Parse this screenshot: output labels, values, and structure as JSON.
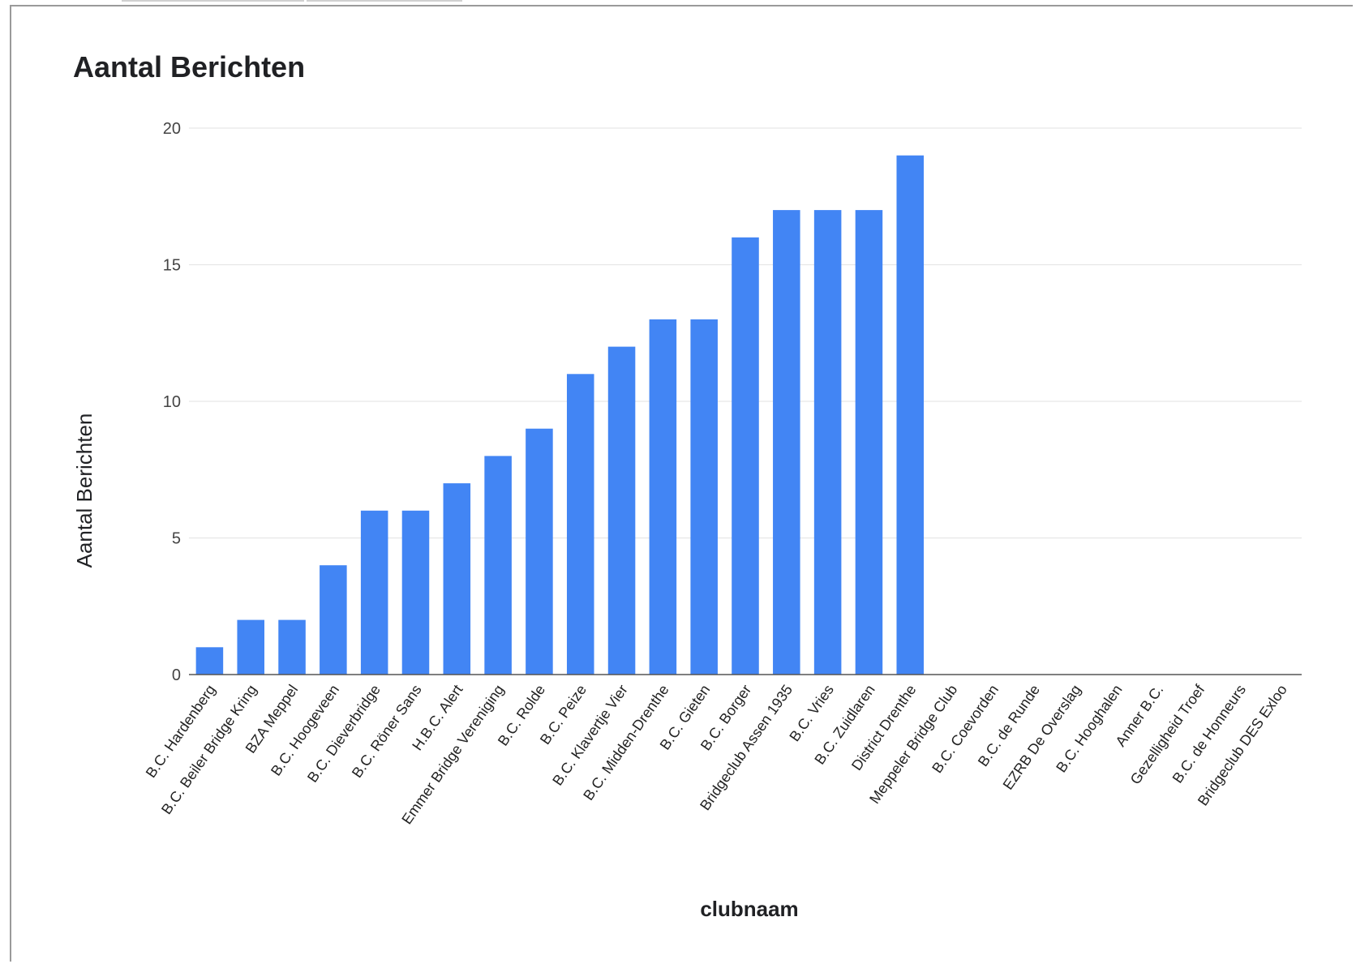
{
  "chart_data": {
    "type": "bar",
    "title": "Aantal Berichten",
    "xlabel": "clubnaam",
    "ylabel": "Aantal Berichten",
    "ylim": [
      0,
      20
    ],
    "yticks": [
      0,
      5,
      10,
      15,
      20
    ],
    "grid": true,
    "legend": "none",
    "bar_color": "#4285f4",
    "categories": [
      "B.C. Hardenberg",
      "B.C. Beiler Bridge Kring",
      "BZA Meppel",
      "B.C. Hoogeveen",
      "B.C. Dieverbridge",
      "B.C. Röner Sans",
      "H.B.C. Alert",
      "Emmer Bridge Vereniging",
      "B.C. Rolde",
      "B.C. Peize",
      "B.C. Klavertje Vier",
      "B.C. Midden-Drenthe",
      "B.C. Gieten",
      "B.C. Borger",
      "Bridgeclub Assen 1935",
      "B.C. Vries",
      "B.C. Zuidlaren",
      "District Drenthe",
      "Meppeler Bridge Club",
      "B.C. Coevorden",
      "B.C. de Runde",
      "EZRB De Overslag",
      "B.C. Hooghalen",
      "Anner B.C.",
      "Gezelligheid Troef",
      "B.C. de Honneurs",
      "Bridgeclub DES Exloo"
    ],
    "values": [
      1,
      2,
      2,
      4,
      6,
      6,
      7,
      8,
      9,
      11,
      12,
      13,
      13,
      16,
      17,
      17,
      17,
      19,
      0,
      0,
      0,
      0,
      0,
      0,
      0,
      0,
      0
    ]
  }
}
